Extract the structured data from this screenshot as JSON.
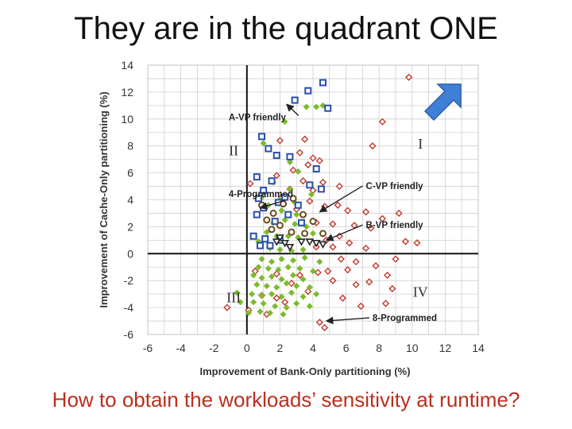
{
  "slide": {
    "title": "They are in the quadrant ONE",
    "question": "How to obtain the workloads’ sensitivity at runtime?"
  },
  "chart_data": {
    "type": "scatter",
    "title": "",
    "xlabel": "Improvement of Bank-Only partitioning (%)",
    "ylabel": "Improvement of Cache-Only partitioning (%)",
    "xlim": [
      -6,
      14
    ],
    "ylim": [
      -6,
      14
    ],
    "x_ticks": [
      "-6",
      "-4",
      "-2",
      "0",
      "2",
      "4",
      "6",
      "8",
      "10",
      "12",
      "14"
    ],
    "y_ticks": [
      "-6",
      "-4",
      "-2",
      "0",
      "2",
      "4",
      "6",
      "8",
      "10",
      "12",
      "14"
    ],
    "grid": true,
    "quadrant_labels": [
      {
        "label": "I",
        "x": 10.5,
        "y": 7.8
      },
      {
        "label": "II",
        "x": -0.8,
        "y": 7.3
      },
      {
        "label": "III",
        "x": -0.8,
        "y": -3.6
      },
      {
        "label": "IV",
        "x": 10.5,
        "y": -3.2
      }
    ],
    "annotations": [
      {
        "label": "A-VP friendly",
        "text_x": -1.1,
        "text_y": 9.9,
        "arrow_to_x": 2.4,
        "arrow_to_y": 11.1
      },
      {
        "label": "4-Programmed",
        "text_x": -1.1,
        "text_y": 4.2,
        "arrow_to_x": 0.8,
        "arrow_to_y": 3.4
      },
      {
        "label": "C-VP friendly",
        "text_x": 7.2,
        "text_y": 4.8,
        "arrow_to_x": 4.4,
        "arrow_to_y": 3.1
      },
      {
        "label": "B-VP friendly",
        "text_x": 7.2,
        "text_y": 1.9,
        "arrow_to_x": 4.8,
        "arrow_to_y": 1.0
      },
      {
        "label": "8-Programmed",
        "text_x": 7.6,
        "text_y": -5.0,
        "arrow_to_x": 4.8,
        "arrow_to_y": -5.0
      }
    ],
    "series": [
      {
        "name": "A-VP friendly",
        "marker": "square",
        "color": "#2a4fa8",
        "points": [
          [
            4.6,
            12.7
          ],
          [
            3.7,
            12.1
          ],
          [
            2.9,
            11.4
          ],
          [
            4.9,
            10.8
          ],
          [
            0.9,
            8.7
          ],
          [
            1.3,
            7.8
          ],
          [
            1.8,
            7.3
          ],
          [
            2.6,
            7.2
          ],
          [
            4.2,
            6.3
          ],
          [
            0.6,
            5.7
          ],
          [
            1.5,
            5.4
          ],
          [
            3.8,
            5.1
          ],
          [
            1.0,
            4.7
          ],
          [
            4.5,
            4.8
          ],
          [
            2.3,
            4.2
          ],
          [
            0.7,
            4.1
          ],
          [
            1.9,
            3.8
          ],
          [
            3.1,
            3.6
          ],
          [
            1.0,
            3.4
          ],
          [
            0.6,
            2.9
          ],
          [
            2.5,
            2.9
          ],
          [
            1.7,
            2.4
          ],
          [
            3.3,
            2.3
          ],
          [
            0.4,
            1.3
          ],
          [
            1.1,
            1.1
          ],
          [
            2.0,
            1.0
          ],
          [
            0.8,
            0.6
          ],
          [
            1.4,
            0.6
          ]
        ]
      },
      {
        "name": "C-VP friendly",
        "marker": "circle",
        "color": "#6b4a1e",
        "points": [
          [
            0.9,
            3.6
          ],
          [
            1.6,
            3.0
          ],
          [
            2.2,
            3.7
          ],
          [
            2.8,
            4.1
          ],
          [
            3.4,
            2.9
          ],
          [
            4.0,
            2.4
          ],
          [
            1.2,
            2.5
          ],
          [
            2.0,
            2.1
          ],
          [
            2.7,
            1.6
          ],
          [
            3.5,
            1.5
          ],
          [
            4.6,
            1.5
          ],
          [
            1.5,
            1.8
          ]
        ]
      },
      {
        "name": "B-VP friendly",
        "marker": "triangle",
        "color": "#222222",
        "points": [
          [
            2.0,
            1.2
          ],
          [
            2.3,
            0.8
          ],
          [
            2.6,
            0.5
          ],
          [
            3.3,
            0.9
          ],
          [
            3.8,
            0.9
          ],
          [
            4.2,
            0.8
          ],
          [
            4.6,
            0.7
          ],
          [
            1.8,
            0.9
          ]
        ]
      },
      {
        "name": "8-Programmed",
        "marker": "diamond-red",
        "color": "#c0392b",
        "points": [
          [
            9.8,
            13.1
          ],
          [
            8.2,
            9.8
          ],
          [
            7.6,
            8.0
          ],
          [
            2.0,
            8.4
          ],
          [
            3.5,
            8.5
          ],
          [
            3.2,
            7.5
          ],
          [
            4.0,
            7.1
          ],
          [
            4.4,
            6.9
          ],
          [
            2.8,
            6.2
          ],
          [
            3.7,
            6.6
          ],
          [
            0.2,
            5.2
          ],
          [
            1.8,
            5.8
          ],
          [
            3.4,
            5.4
          ],
          [
            4.6,
            5.3
          ],
          [
            5.6,
            5.0
          ],
          [
            2.6,
            4.8
          ],
          [
            4.0,
            4.7
          ],
          [
            2.1,
            4.2
          ],
          [
            3.8,
            3.9
          ],
          [
            3.0,
            3.3
          ],
          [
            4.7,
            3.5
          ],
          [
            5.5,
            3.6
          ],
          [
            6.1,
            3.2
          ],
          [
            7.2,
            3.1
          ],
          [
            9.2,
            3.0
          ],
          [
            8.2,
            2.6
          ],
          [
            4.2,
            2.3
          ],
          [
            5.2,
            2.2
          ],
          [
            6.5,
            2.1
          ],
          [
            7.5,
            1.9
          ],
          [
            5.6,
            1.3
          ],
          [
            4.8,
            1.0
          ],
          [
            6.2,
            0.8
          ],
          [
            10.3,
            0.8
          ],
          [
            9.6,
            0.9
          ],
          [
            4.2,
            0.5
          ],
          [
            5.2,
            0.5
          ],
          [
            7.2,
            0.4
          ],
          [
            5.7,
            -0.4
          ],
          [
            6.6,
            -0.6
          ],
          [
            7.8,
            -0.9
          ],
          [
            4.9,
            -1.3
          ],
          [
            6.1,
            -1.2
          ],
          [
            8.5,
            -1.6
          ],
          [
            9.0,
            -0.4
          ],
          [
            0.5,
            -1.3
          ],
          [
            1.8,
            -1.5
          ],
          [
            3.2,
            -1.6
          ],
          [
            4.3,
            -1.4
          ],
          [
            5.2,
            -2.0
          ],
          [
            6.6,
            -2.3
          ],
          [
            7.4,
            -2.1
          ],
          [
            8.8,
            -2.6
          ],
          [
            2.7,
            -2.2
          ],
          [
            3.7,
            -2.8
          ],
          [
            5.8,
            -3.3
          ],
          [
            6.9,
            -3.9
          ],
          [
            8.4,
            -3.7
          ],
          [
            0.9,
            -3.1
          ],
          [
            1.8,
            -3.3
          ],
          [
            2.3,
            -3.6
          ],
          [
            0.1,
            -4.2
          ],
          [
            -1.2,
            -4.0
          ],
          [
            1.2,
            -4.5
          ],
          [
            4.4,
            -5.1
          ],
          [
            4.7,
            -5.5
          ]
        ]
      },
      {
        "name": "4-Programmed",
        "marker": "diamond-green",
        "color": "#7cbb2e",
        "points": [
          [
            3.6,
            10.9
          ],
          [
            4.2,
            10.9
          ],
          [
            4.6,
            11.0
          ],
          [
            2.3,
            9.8
          ],
          [
            1.0,
            8.2
          ],
          [
            2.6,
            6.8
          ],
          [
            3.1,
            6.1
          ],
          [
            1.6,
            5.3
          ],
          [
            2.6,
            4.8
          ],
          [
            3.9,
            4.4
          ],
          [
            0.9,
            4.2
          ],
          [
            2.0,
            4.0
          ],
          [
            2.9,
            3.8
          ],
          [
            1.3,
            3.6
          ],
          [
            2.1,
            3.2
          ],
          [
            3.0,
            2.9
          ],
          [
            1.6,
            2.3
          ],
          [
            2.3,
            2.5
          ],
          [
            2.9,
            2.2
          ],
          [
            3.6,
            2.0
          ],
          [
            1.2,
            1.6
          ],
          [
            1.8,
            1.3
          ],
          [
            2.5,
            1.3
          ],
          [
            3.1,
            1.2
          ],
          [
            4.0,
            1.5
          ],
          [
            0.7,
            0.9
          ],
          [
            1.4,
            0.4
          ],
          [
            2.0,
            0.3
          ],
          [
            2.7,
            0.2
          ],
          [
            3.4,
            0.3
          ],
          [
            0.9,
            -0.4
          ],
          [
            1.5,
            -0.6
          ],
          [
            2.1,
            -0.4
          ],
          [
            2.8,
            -0.5
          ],
          [
            3.5,
            -0.3
          ],
          [
            4.4,
            -0.6
          ],
          [
            0.7,
            -1.0
          ],
          [
            1.3,
            -1.1
          ],
          [
            1.9,
            -1.2
          ],
          [
            2.5,
            -1.0
          ],
          [
            3.2,
            -1.1
          ],
          [
            4.0,
            -1.3
          ],
          [
            0.4,
            -1.6
          ],
          [
            0.9,
            -1.8
          ],
          [
            1.5,
            -1.7
          ],
          [
            2.1,
            -1.9
          ],
          [
            2.8,
            -1.6
          ],
          [
            3.4,
            -1.9
          ],
          [
            0.6,
            -2.3
          ],
          [
            1.2,
            -2.4
          ],
          [
            1.8,
            -2.5
          ],
          [
            2.4,
            -2.2
          ],
          [
            3.0,
            -2.4
          ],
          [
            3.8,
            -2.5
          ],
          [
            -0.6,
            -2.9
          ],
          [
            0.3,
            -3.0
          ],
          [
            0.9,
            -3.1
          ],
          [
            1.5,
            -3.0
          ],
          [
            2.1,
            -3.2
          ],
          [
            2.7,
            -2.9
          ],
          [
            3.4,
            -3.2
          ],
          [
            4.2,
            -3.0
          ],
          [
            -0.4,
            -3.6
          ],
          [
            0.4,
            -3.6
          ],
          [
            1.0,
            -3.7
          ],
          [
            1.7,
            -3.9
          ],
          [
            2.4,
            -4.0
          ],
          [
            3.0,
            -3.7
          ],
          [
            3.8,
            -3.9
          ],
          [
            0.1,
            -4.4
          ],
          [
            0.8,
            -4.3
          ],
          [
            1.4,
            -4.4
          ],
          [
            2.2,
            -4.5
          ]
        ]
      }
    ]
  },
  "arrow_icon": {
    "name": "upper-right-arrow-icon",
    "color": "#3f7fd6"
  }
}
